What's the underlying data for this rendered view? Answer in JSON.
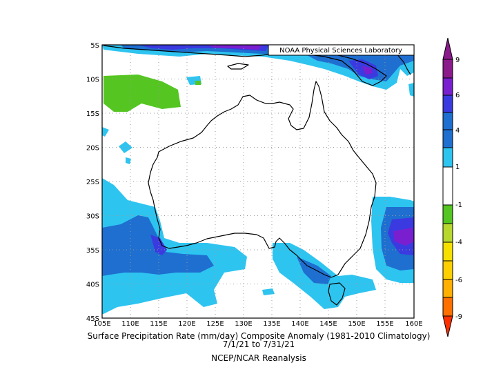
{
  "map": {
    "credit": "NOAA Physical Sciences Laboratory",
    "lat_labels": [
      "5S",
      "10S",
      "15S",
      "20S",
      "25S",
      "30S",
      "35S",
      "40S",
      "45S"
    ],
    "lon_labels": [
      "105E",
      "110E",
      "115E",
      "120E",
      "125E",
      "130E",
      "135E",
      "140E",
      "145E",
      "150E",
      "155E",
      "160E"
    ],
    "lat_range": [
      -45,
      -5
    ],
    "lon_range": [
      105,
      160
    ]
  },
  "colorbar": {
    "labels": [
      "9",
      "6",
      "4",
      "1",
      "-1",
      "-4",
      "-6",
      "-9"
    ],
    "colors": [
      "#8b1a8b",
      "#7a1fd0",
      "#3a3ae0",
      "#1e6fd0",
      "#2ec4f0",
      "#ffffff",
      "#55c522",
      "#b8d830",
      "#f5e000",
      "#ffb000",
      "#ff7000",
      "#ff3000"
    ]
  },
  "caption": {
    "line1": "Surface Precipitation Rate (mm/day) Composite Anomaly (1981-2010 Climatology)",
    "line2": "7/1/21  to 7/31/21",
    "line3": "NCEP/NCAR Reanalysis"
  }
}
